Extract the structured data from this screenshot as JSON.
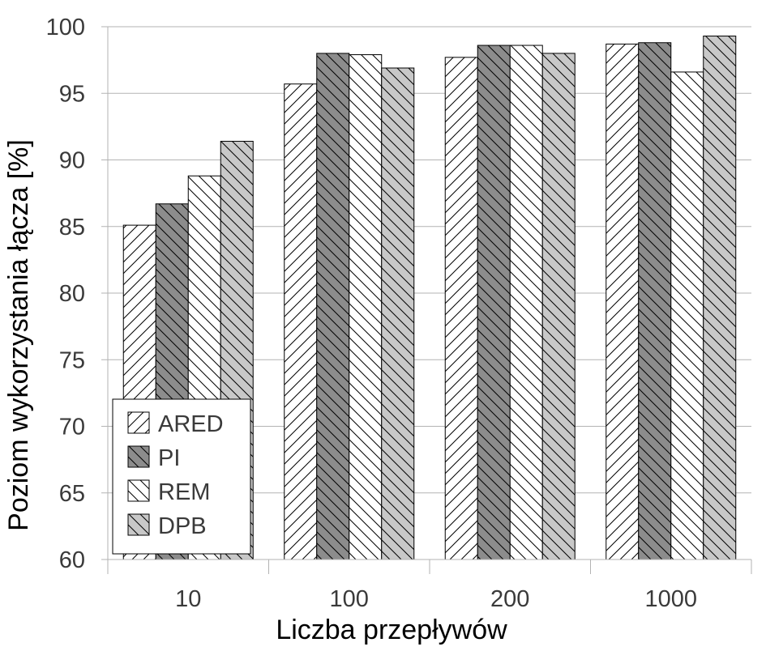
{
  "chart_data": {
    "type": "bar",
    "title": "",
    "xlabel": "Liczba przepływów",
    "ylabel": "Poziom wykorzystania łącza [%]",
    "categories": [
      "10",
      "100",
      "200",
      "1000"
    ],
    "ylim": [
      60,
      100
    ],
    "yticks": [
      60,
      65,
      70,
      75,
      80,
      85,
      90,
      95,
      100
    ],
    "grid": "horizontal",
    "legend_position": "bottom-left",
    "series": [
      {
        "name": "ARED",
        "values": [
          85.1,
          95.7,
          97.7,
          98.7
        ],
        "fill": "#ffffff",
        "hatch": "forward",
        "hatch_color": "#000000"
      },
      {
        "name": "PI",
        "values": [
          86.7,
          98.0,
          98.6,
          98.8
        ],
        "fill": "#8c8c8c",
        "hatch": "back",
        "hatch_color": "#000000"
      },
      {
        "name": "REM",
        "values": [
          88.8,
          97.9,
          98.6,
          96.6
        ],
        "fill": "#ffffff",
        "hatch": "back",
        "hatch_color": "#000000"
      },
      {
        "name": "DPB",
        "values": [
          91.4,
          96.9,
          98.0,
          99.3
        ],
        "fill": "#c8c8c8",
        "hatch": "back",
        "hatch_color": "#000000"
      }
    ]
  }
}
